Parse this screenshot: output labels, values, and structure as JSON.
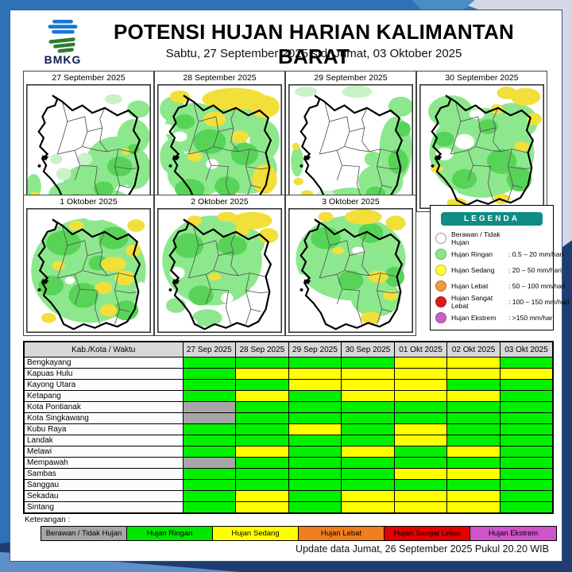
{
  "header": {
    "title": "POTENSI HUJAN HARIAN KALIMANTAN BARAT",
    "subtitle": "Sabtu, 27 September 2025 s.d. Jumat, 03 Oktober 2025",
    "logo_text": "BMKG"
  },
  "maps": {
    "blob_colors": {
      "l": "#8de88d",
      "p": "#c9f2c7",
      "g": "#57d457",
      "y": "#f2df3a",
      "w": "#ffffff"
    },
    "panels": [
      {
        "date": "27 September 2025",
        "blobs": [
          [
            72,
            62,
            24,
            20,
            "l"
          ],
          [
            52,
            78,
            22,
            14,
            "l"
          ],
          [
            86,
            42,
            13,
            14,
            "l"
          ],
          [
            34,
            88,
            16,
            10,
            "l"
          ],
          [
            88,
            68,
            12,
            16,
            "l"
          ],
          [
            62,
            92,
            20,
            8,
            "l"
          ],
          [
            90,
            20,
            9,
            7,
            "l"
          ],
          [
            70,
            12,
            7,
            4,
            "p"
          ],
          [
            6,
            82,
            6,
            10,
            "l"
          ],
          [
            24,
            60,
            5,
            4,
            "p"
          ],
          [
            47,
            60,
            6,
            5,
            "p"
          ],
          [
            30,
            72,
            6,
            5,
            "p"
          ],
          [
            75,
            66,
            10,
            8,
            "g"
          ],
          [
            62,
            84,
            8,
            6,
            "g"
          ],
          [
            86,
            52,
            5,
            4,
            "g"
          ],
          [
            40,
            92,
            7,
            4,
            "g"
          ],
          [
            80,
            54,
            3,
            2.5,
            "y"
          ],
          [
            7,
            88,
            3,
            2,
            "y"
          ]
        ]
      },
      {
        "date": "28 September 2025",
        "blobs": [
          [
            30,
            35,
            24,
            20,
            "l"
          ],
          [
            62,
            28,
            26,
            16,
            "l"
          ],
          [
            32,
            72,
            24,
            18,
            "l"
          ],
          [
            72,
            68,
            24,
            20,
            "l"
          ],
          [
            50,
            50,
            22,
            16,
            "l"
          ],
          [
            86,
            45,
            12,
            16,
            "l"
          ],
          [
            12,
            58,
            10,
            14,
            "l"
          ],
          [
            12,
            20,
            10,
            10,
            "l"
          ],
          [
            42,
            46,
            13,
            10,
            "g"
          ],
          [
            70,
            56,
            11,
            9,
            "g"
          ],
          [
            26,
            84,
            12,
            8,
            "g"
          ],
          [
            56,
            82,
            10,
            8,
            "g"
          ],
          [
            22,
            30,
            8,
            6,
            "g"
          ],
          [
            62,
            12,
            26,
            9,
            "y"
          ],
          [
            86,
            18,
            12,
            9,
            "y"
          ],
          [
            46,
            28,
            9,
            6,
            "y"
          ],
          [
            86,
            76,
            10,
            12,
            "y"
          ],
          [
            50,
            96,
            22,
            6,
            "y"
          ],
          [
            18,
            10,
            8,
            5,
            "y"
          ],
          [
            66,
            42,
            7,
            5,
            "y"
          ],
          [
            30,
            58,
            6,
            4,
            "y"
          ],
          [
            18,
            42,
            6,
            4,
            "w"
          ],
          [
            44,
            64,
            5,
            4,
            "w"
          ],
          [
            8,
            36,
            5,
            4,
            "w"
          ]
        ]
      },
      {
        "date": "29 September 2025",
        "blobs": [
          [
            86,
            52,
            13,
            26,
            "l"
          ],
          [
            74,
            78,
            18,
            14,
            "l"
          ],
          [
            50,
            92,
            22,
            9,
            "l"
          ],
          [
            90,
            18,
            10,
            8,
            "l"
          ],
          [
            55,
            6,
            12,
            5,
            "p"
          ],
          [
            14,
            6,
            9,
            4,
            "p"
          ],
          [
            7,
            62,
            5,
            12,
            "l"
          ],
          [
            20,
            94,
            10,
            5,
            "l"
          ],
          [
            68,
            60,
            7,
            6,
            "l"
          ],
          [
            30,
            90,
            8,
            5,
            "p"
          ],
          [
            88,
            62,
            8,
            10,
            "g"
          ],
          [
            70,
            88,
            8,
            6,
            "g"
          ],
          [
            92,
            36,
            6,
            6,
            "g"
          ],
          [
            8,
            78,
            4,
            3,
            "y"
          ],
          [
            15,
            88,
            5,
            3,
            "y"
          ],
          [
            6,
            50,
            3,
            3,
            "y"
          ]
        ]
      },
      {
        "date": "30 September 2025",
        "blobs": [
          [
            50,
            55,
            42,
            36,
            "l"
          ],
          [
            25,
            22,
            18,
            13,
            "l"
          ],
          [
            75,
            30,
            20,
            15,
            "l"
          ],
          [
            66,
            62,
            12,
            10,
            "g"
          ],
          [
            36,
            76,
            10,
            8,
            "g"
          ],
          [
            80,
            76,
            10,
            10,
            "g"
          ],
          [
            55,
            34,
            8,
            6,
            "g"
          ],
          [
            20,
            44,
            8,
            6,
            "g"
          ],
          [
            85,
            10,
            12,
            7,
            "y"
          ],
          [
            70,
            7,
            8,
            5,
            "y"
          ],
          [
            92,
            28,
            6,
            5,
            "y"
          ],
          [
            62,
            20,
            5,
            4,
            "y"
          ],
          [
            82,
            50,
            6,
            4,
            "y"
          ],
          [
            30,
            95,
            8,
            4,
            "y"
          ],
          [
            66,
            92,
            7,
            4,
            "y"
          ],
          [
            14,
            68,
            5,
            3,
            "y"
          ],
          [
            36,
            46,
            8,
            6,
            "w"
          ],
          [
            20,
            56,
            7,
            5,
            "w"
          ],
          [
            46,
            24,
            6,
            4,
            "w"
          ],
          [
            26,
            88,
            5,
            4,
            "w"
          ],
          [
            55,
            8,
            6,
            3,
            "w"
          ]
        ]
      },
      {
        "date": "1 Oktober 2025",
        "blobs": [
          [
            50,
            50,
            46,
            42,
            "l"
          ],
          [
            30,
            28,
            14,
            10,
            "g"
          ],
          [
            70,
            24,
            12,
            9,
            "g"
          ],
          [
            46,
            70,
            12,
            10,
            "g"
          ],
          [
            20,
            62,
            10,
            8,
            "g"
          ],
          [
            80,
            82,
            10,
            8,
            "g"
          ],
          [
            58,
            44,
            8,
            6,
            "g"
          ],
          [
            70,
            45,
            10,
            6,
            "y"
          ],
          [
            79,
            56,
            8,
            6,
            "y"
          ],
          [
            62,
            64,
            7,
            5,
            "y"
          ],
          [
            86,
            34,
            6,
            5,
            "y"
          ],
          [
            26,
            46,
            5,
            4,
            "y"
          ],
          [
            66,
            82,
            7,
            5,
            "y"
          ],
          [
            18,
            88,
            6,
            4,
            "y"
          ],
          [
            40,
            14,
            6,
            4,
            "y"
          ],
          [
            88,
            14,
            7,
            5,
            "y"
          ],
          [
            12,
            14,
            8,
            6,
            "w"
          ],
          [
            55,
            7,
            8,
            3,
            "w"
          ],
          [
            92,
            66,
            4,
            7,
            "w"
          ],
          [
            35,
            58,
            4,
            3,
            "w"
          ]
        ]
      },
      {
        "date": "2 Oktober 2025",
        "blobs": [
          [
            44,
            42,
            40,
            36,
            "l"
          ],
          [
            70,
            28,
            16,
            12,
            "l"
          ],
          [
            25,
            30,
            12,
            10,
            "g"
          ],
          [
            60,
            30,
            12,
            8,
            "g"
          ],
          [
            35,
            70,
            10,
            8,
            "g"
          ],
          [
            15,
            78,
            8,
            6,
            "l"
          ],
          [
            40,
            88,
            12,
            7,
            "l"
          ],
          [
            76,
            10,
            16,
            7,
            "y"
          ],
          [
            89,
            22,
            8,
            6,
            "y"
          ],
          [
            56,
            7,
            8,
            4,
            "y"
          ],
          [
            30,
            10,
            6,
            4,
            "y"
          ],
          [
            46,
            55,
            5,
            3,
            "y"
          ],
          [
            68,
            18,
            6,
            4,
            "y"
          ],
          [
            85,
            76,
            14,
            17,
            "w"
          ],
          [
            70,
            89,
            12,
            8,
            "w"
          ],
          [
            93,
            52,
            6,
            9,
            "w"
          ],
          [
            16,
            52,
            6,
            5,
            "w"
          ],
          [
            56,
            72,
            5,
            4,
            "w"
          ],
          [
            26,
            92,
            6,
            4,
            "w"
          ]
        ]
      },
      {
        "date": "3 Oktober 2025",
        "blobs": [
          [
            50,
            40,
            44,
            34,
            "l"
          ],
          [
            70,
            72,
            20,
            15,
            "l"
          ],
          [
            30,
            24,
            12,
            9,
            "g"
          ],
          [
            66,
            20,
            10,
            8,
            "g"
          ],
          [
            50,
            58,
            10,
            8,
            "g"
          ],
          [
            85,
            55,
            8,
            8,
            "g"
          ],
          [
            60,
            7,
            15,
            6,
            "y"
          ],
          [
            86,
            12,
            8,
            6,
            "y"
          ],
          [
            30,
            7,
            6,
            4,
            "y"
          ],
          [
            72,
            55,
            8,
            5,
            "y"
          ],
          [
            66,
            88,
            8,
            5,
            "y"
          ],
          [
            82,
            70,
            6,
            4,
            "y"
          ],
          [
            40,
            34,
            5,
            3,
            "y"
          ],
          [
            18,
            80,
            16,
            11,
            "w"
          ],
          [
            36,
            92,
            12,
            6,
            "w"
          ],
          [
            10,
            60,
            6,
            7,
            "w"
          ],
          [
            56,
            34,
            5,
            3,
            "w"
          ],
          [
            92,
            88,
            6,
            6,
            "w"
          ]
        ]
      }
    ]
  },
  "legend": {
    "title": "LEGENDA",
    "items": [
      {
        "label": "Berawan / Tidak Hujan",
        "range": "",
        "color": "#ffffff"
      },
      {
        "label": "Hujan Ringan",
        "range": ": 0.5 – 20 mm/hari",
        "color": "#8ae88a"
      },
      {
        "label": "Hujan Sedang",
        "range": ": 20 – 50 mm/hari",
        "color": "#ffff33"
      },
      {
        "label": "Hujan Lebat",
        "range": ": 50 – 100 mm/hari",
        "color": "#ee9d3a"
      },
      {
        "label": "Hujan Sangat Lebat",
        "range": ": 100 – 150 mm/hari",
        "color": "#e01818"
      },
      {
        "label": "Hujan Ekstrem",
        "range": ": >150 mm/hari",
        "color": "#cc5fc6"
      }
    ]
  },
  "table": {
    "corner_header": "Kab./Kota / Waktu",
    "date_columns": [
      "27 Sep 2025",
      "28 Sep 2025",
      "29 Sep 2025",
      "30 Sep 2025",
      "01 Okt 2025",
      "02 Okt 2025",
      "03 Okt 2025"
    ],
    "cell_colors": {
      "G": "#00f000",
      "Y": "#ffff00",
      "X": "#a6a6a6"
    },
    "rows": [
      {
        "name": "Bengkayang",
        "cells": [
          "G",
          "G",
          "G",
          "G",
          "Y",
          "Y",
          "G"
        ]
      },
      {
        "name": "Kapuas Hulu",
        "cells": [
          "G",
          "Y",
          "Y",
          "Y",
          "Y",
          "Y",
          "Y"
        ]
      },
      {
        "name": "Kayong Utara",
        "cells": [
          "G",
          "G",
          "Y",
          "Y",
          "Y",
          "G",
          "G"
        ]
      },
      {
        "name": "Ketapang",
        "cells": [
          "G",
          "Y",
          "G",
          "Y",
          "Y",
          "Y",
          "G"
        ]
      },
      {
        "name": "Kota Pontianak",
        "cells": [
          "X",
          "G",
          "G",
          "G",
          "G",
          "G",
          "G"
        ]
      },
      {
        "name": "Kota Singkawang",
        "cells": [
          "X",
          "G",
          "G",
          "G",
          "G",
          "G",
          "G"
        ]
      },
      {
        "name": "Kubu Raya",
        "cells": [
          "G",
          "G",
          "Y",
          "G",
          "Y",
          "G",
          "G"
        ]
      },
      {
        "name": "Landak",
        "cells": [
          "G",
          "G",
          "G",
          "G",
          "Y",
          "G",
          "G"
        ]
      },
      {
        "name": "Melawi",
        "cells": [
          "G",
          "Y",
          "G",
          "Y",
          "G",
          "Y",
          "G"
        ]
      },
      {
        "name": "Mempawah",
        "cells": [
          "X",
          "G",
          "G",
          "G",
          "G",
          "G",
          "G"
        ]
      },
      {
        "name": "Sambas",
        "cells": [
          "G",
          "G",
          "G",
          "G",
          "Y",
          "Y",
          "G"
        ]
      },
      {
        "name": "Sanggau",
        "cells": [
          "G",
          "G",
          "G",
          "G",
          "G",
          "G",
          "G"
        ]
      },
      {
        "name": "Sekadau",
        "cells": [
          "G",
          "Y",
          "G",
          "Y",
          "Y",
          "Y",
          "G"
        ]
      },
      {
        "name": "Sintang",
        "cells": [
          "G",
          "Y",
          "G",
          "Y",
          "Y",
          "Y",
          "G"
        ]
      }
    ]
  },
  "keterangan": {
    "label": "Keterangan :",
    "items": [
      {
        "label": "Berawan / Tidak Hujan",
        "color": "#a6a6a6"
      },
      {
        "label": "Hujan Ringan",
        "color": "#00e800"
      },
      {
        "label": "Hujan Sedang",
        "color": "#ffff00"
      },
      {
        "label": "Hujan Lebat",
        "color": "#f07d1e"
      },
      {
        "label": "Hujan Sangat Lebat",
        "color": "#e60000"
      },
      {
        "label": "Hujan Ekstrem",
        "color": "#cf53c9"
      }
    ]
  },
  "footer": {
    "update_text": "Update data Jumat, 26 September 2025 Pukul 20.20 WIB"
  }
}
